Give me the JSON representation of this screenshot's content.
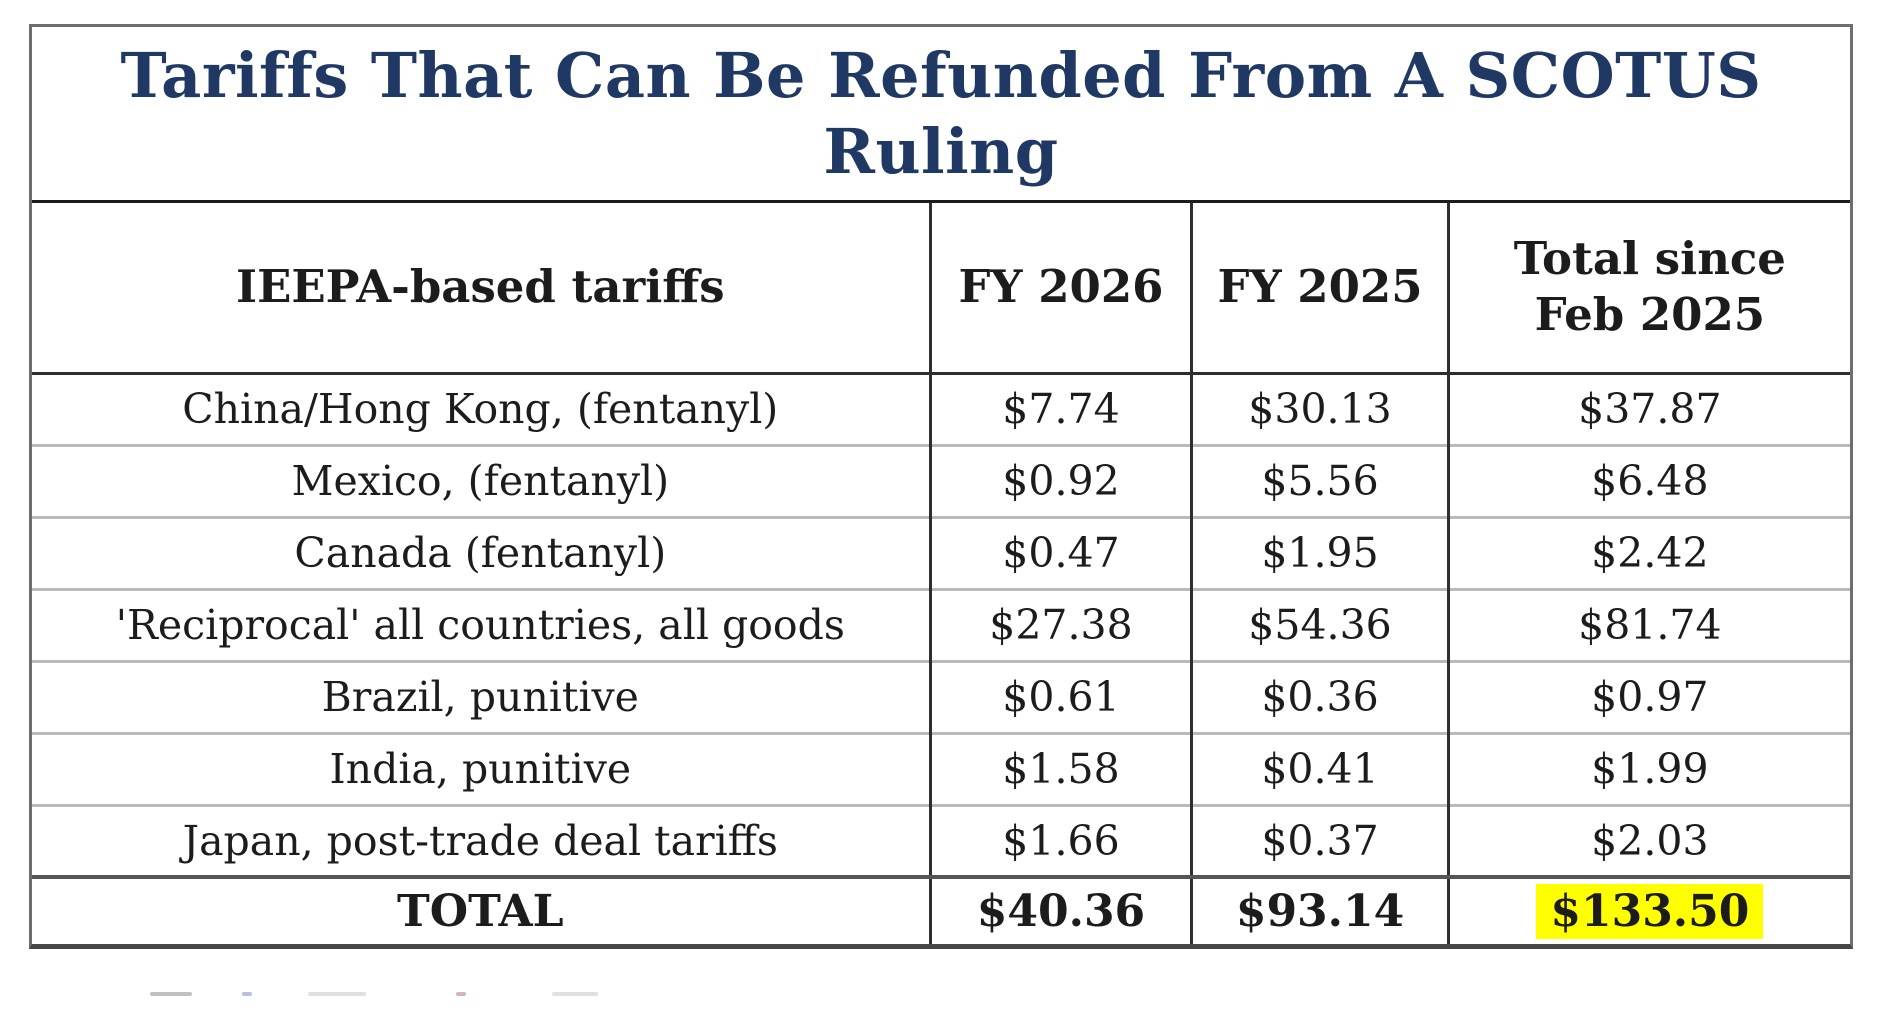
{
  "colors": {
    "title": "#1f3864",
    "highlight": "#ffff00",
    "text": "#1c1c1c",
    "grid_dark": "#2e2e2e",
    "grid_light": "#b9b9b9",
    "outer_border": "#6e6e6e"
  },
  "title": "Tariffs That Can Be Refunded From A SCOTUS Ruling",
  "table": {
    "headers": [
      "IEEPA-based tariffs",
      "FY 2026",
      "FY 2025",
      "Total since Feb 2025"
    ],
    "rows": [
      [
        "China/Hong Kong, (fentanyl)",
        "$7.74",
        "$30.13",
        "$37.87"
      ],
      [
        "Mexico, (fentanyl)",
        "$0.92",
        "$5.56",
        "$6.48"
      ],
      [
        "Canada (fentanyl)",
        "$0.47",
        "$1.95",
        "$2.42"
      ],
      [
        "'Reciprocal' all countries, all goods",
        "$27.38",
        "$54.36",
        "$81.74"
      ],
      [
        "Brazil, punitive",
        "$0.61",
        "$0.36",
        "$0.97"
      ],
      [
        "India, punitive",
        "$1.58",
        "$0.41",
        "$1.99"
      ],
      [
        "Japan, post-trade deal tariffs",
        "$1.66",
        "$0.37",
        "$2.03"
      ]
    ],
    "total_row": [
      "TOTAL",
      "$40.36",
      "$93.14",
      "$133.50"
    ]
  },
  "chart_data": {
    "type": "table",
    "title": "Tariffs That Can Be Refunded From A SCOTUS Ruling",
    "columns": [
      "IEEPA-based tariffs",
      "FY 2026",
      "FY 2025",
      "Total since Feb 2025"
    ],
    "rows": [
      {
        "category": "China/Hong Kong, (fentanyl)",
        "fy_2026": 7.74,
        "fy_2025": 30.13,
        "total_since_feb_2025": 37.87
      },
      {
        "category": "Mexico, (fentanyl)",
        "fy_2026": 0.92,
        "fy_2025": 5.56,
        "total_since_feb_2025": 6.48
      },
      {
        "category": "Canada (fentanyl)",
        "fy_2026": 0.47,
        "fy_2025": 1.95,
        "total_since_feb_2025": 2.42
      },
      {
        "category": "'Reciprocal' all countries, all goods",
        "fy_2026": 27.38,
        "fy_2025": 54.36,
        "total_since_feb_2025": 81.74
      },
      {
        "category": "Brazil, punitive",
        "fy_2026": 0.61,
        "fy_2025": 0.36,
        "total_since_feb_2025": 0.97
      },
      {
        "category": "India, punitive",
        "fy_2026": 1.58,
        "fy_2025": 0.41,
        "total_since_feb_2025": 1.99
      },
      {
        "category": "Japan, post-trade deal tariffs",
        "fy_2026": 1.66,
        "fy_2025": 0.37,
        "total_since_feb_2025": 2.03
      }
    ],
    "totals": {
      "category": "TOTAL",
      "fy_2026": 40.36,
      "fy_2025": 93.14,
      "total_since_feb_2025": 133.5
    },
    "value_prefix": "$",
    "highlighted_cell": {
      "row": "TOTAL",
      "column": "Total since Feb 2025",
      "value": 133.5,
      "highlight_color": "#ffff00"
    },
    "grid": true,
    "legend": false
  }
}
